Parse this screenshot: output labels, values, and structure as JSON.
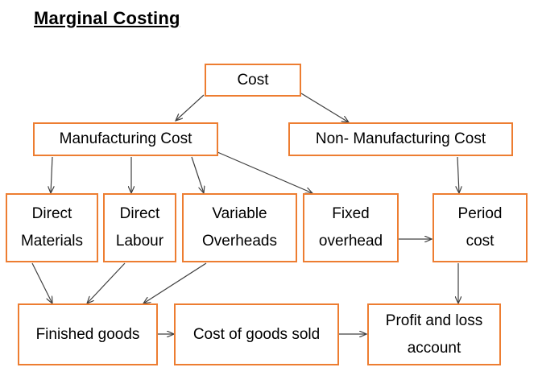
{
  "title": "Marginal Costing",
  "nodes": {
    "cost": "Cost",
    "manufacturing": "Manufacturing Cost",
    "non_manufacturing": "Non- Manufacturing Cost",
    "direct_materials": [
      "Direct",
      "Materials"
    ],
    "direct_labour": [
      "Direct",
      "Labour"
    ],
    "variable_overheads": [
      "Variable",
      "Overheads"
    ],
    "fixed_overhead": [
      "Fixed",
      "overhead"
    ],
    "period_cost": [
      "Period",
      "cost"
    ],
    "finished_goods": "Finished goods",
    "cogs": "Cost of goods sold",
    "pl_account": [
      "Profit and loss",
      "account"
    ]
  },
  "colors": {
    "box_border": "#ED7D31",
    "arrow": "#404040"
  }
}
